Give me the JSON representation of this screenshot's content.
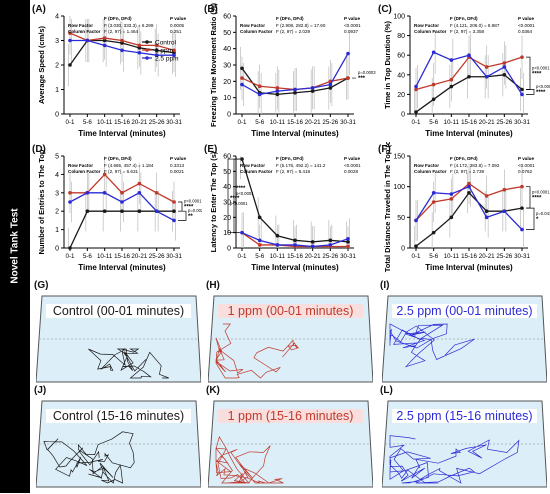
{
  "side_label": "Novel Tank Test",
  "colors": {
    "control": "#1a1a1a",
    "ppm1": "#c0392b",
    "ppm25": "#2b2bd6",
    "tank_fill": "#dceef8",
    "tank_border": "#555555"
  },
  "legend": [
    "Control",
    "1 ppm",
    "2.5 ppm"
  ],
  "chart_data": [
    {
      "panel": "(A)",
      "type": "line",
      "ylabel": "Average Speed (cm/s)",
      "xlabel": "Time Interval (minutes)",
      "categories": [
        "0-1",
        "5-6",
        "10-11",
        "15-16",
        "20-21",
        "25-26",
        "30-31"
      ],
      "ylim": [
        0,
        4
      ],
      "yticks": [
        0,
        1,
        2,
        3,
        4
      ],
      "series": [
        {
          "name": "Control",
          "values": [
            2.0,
            3.0,
            3.0,
            2.9,
            2.7,
            2.6,
            2.5
          ]
        },
        {
          "name": "1 ppm",
          "values": [
            3.3,
            3.0,
            3.1,
            3.0,
            2.8,
            2.8,
            2.6
          ]
        },
        {
          "name": "2.5 ppm",
          "values": [
            3.0,
            3.0,
            2.8,
            2.6,
            2.5,
            2.4,
            2.4
          ]
        }
      ],
      "stats": {
        "h": [
          "",
          "F (DFn, DFd)",
          "P value"
        ],
        "rows": [
          [
            "Row Factor",
            "F (3.030, 333.3) = 6.299",
            "0.0005"
          ],
          [
            "Column Factor",
            "F (2, 97) = 1.464",
            "0.251"
          ]
        ]
      },
      "annotations": []
    },
    {
      "panel": "(B)",
      "type": "line",
      "ylabel": "Freezing Time Movement Ratio (%)",
      "xlabel": "Time Interval (minutes)",
      "categories": [
        "0-1",
        "5-6",
        "10-11",
        "15-16",
        "20-21",
        "25-26",
        "30-31"
      ],
      "ylim": [
        0,
        60
      ],
      "yticks": [
        0,
        10,
        20,
        30,
        40,
        50,
        60
      ],
      "series": [
        {
          "name": "Control",
          "values": [
            28,
            13,
            12,
            13,
            14,
            16,
            22
          ]
        },
        {
          "name": "1 ppm",
          "values": [
            22,
            17,
            16,
            15,
            16,
            20,
            22
          ]
        },
        {
          "name": "2.5 ppm",
          "values": [
            18,
            12,
            14,
            15,
            16,
            18,
            37
          ]
        }
      ],
      "stats": {
        "h": [
          "",
          "F (DFn, DFd)",
          "P value"
        ],
        "rows": [
          [
            "Row Factor",
            "F (2.908, 282.8) = 17.60",
            "<0.0001"
          ],
          [
            "Column Factor",
            "F (2, 97) = 2.029",
            "0.0937"
          ]
        ]
      },
      "annotations": [
        {
          "text": "p=0.0003",
          "stars": "***"
        }
      ]
    },
    {
      "panel": "(C)",
      "type": "line",
      "ylabel": "Time in Top Duration (%)",
      "xlabel": "Time Interval (minutes)",
      "categories": [
        "0-1",
        "5-6",
        "10-11",
        "15-16",
        "20-21",
        "25-26",
        "30-31"
      ],
      "ylim": [
        0,
        100
      ],
      "yticks": [
        0,
        20,
        40,
        60,
        80,
        100
      ],
      "series": [
        {
          "name": "Control",
          "values": [
            2,
            15,
            28,
            38,
            38,
            40,
            25
          ]
        },
        {
          "name": "1 ppm",
          "values": [
            25,
            30,
            35,
            58,
            48,
            52,
            58
          ]
        },
        {
          "name": "2.5 ppm",
          "values": [
            28,
            63,
            55,
            60,
            38,
            48,
            20
          ]
        }
      ],
      "stats": {
        "h": [
          "",
          "F (DFn, DFd)",
          "P value"
        ],
        "rows": [
          [
            "Row Factor",
            "F (4.121, 206.0) = 8.987",
            "<0.0001"
          ],
          [
            "Column Factor",
            "F (2, 97) = 3.358",
            "0.0364"
          ]
        ]
      },
      "annotations": [
        {
          "text": "p<0.0001",
          "stars": "****"
        },
        {
          "text": "p<0.0001",
          "stars": "****"
        }
      ]
    },
    {
      "panel": "(D)",
      "type": "line",
      "ylabel": "Number of Entries to The Top",
      "xlabel": "Time Interval (minutes)",
      "categories": [
        "0-1",
        "5-6",
        "10-11",
        "15-16",
        "20-21",
        "25-26",
        "30-31"
      ],
      "ylim": [
        0,
        5
      ],
      "yticks": [
        0,
        1,
        2,
        3,
        4,
        5
      ],
      "series": [
        {
          "name": "Control",
          "values": [
            0,
            2,
            2,
            2,
            2,
            2,
            2
          ]
        },
        {
          "name": "1 ppm",
          "values": [
            3,
            3,
            4,
            3,
            3.5,
            3,
            2.5
          ]
        },
        {
          "name": "2.5 ppm",
          "values": [
            2.5,
            3,
            3,
            2.5,
            3,
            2,
            1.5
          ]
        }
      ],
      "stats": {
        "h": [
          "",
          "F (DFn, DFd)",
          "P value"
        ],
        "rows": [
          [
            "Row Factor",
            "F (4.665, 457.4) = 1.184",
            "0.3313"
          ],
          [
            "Column Factor",
            "F (2, 97) = 6.631",
            "0.0021"
          ]
        ]
      },
      "annotations": [
        {
          "text": "p<0.0001",
          "stars": "****"
        },
        {
          "text": "p=0.0020",
          "stars": "**"
        }
      ]
    },
    {
      "panel": "(E)",
      "type": "line",
      "ylabel": "Latency to Enter The Top (s)",
      "xlabel": "Time Interval (minutes)",
      "categories": [
        "0-1",
        "5-6",
        "10-11",
        "15-16",
        "20-21",
        "25-26",
        "30-31"
      ],
      "ylim": [
        0,
        60
      ],
      "yticks": [
        0,
        10,
        20,
        30,
        40,
        50,
        60
      ],
      "series": [
        {
          "name": "Control",
          "values": [
            58,
            20,
            8,
            5,
            4,
            5,
            4
          ]
        },
        {
          "name": "1 ppm",
          "values": [
            10,
            2,
            2,
            1,
            1,
            1,
            1
          ]
        },
        {
          "name": "2.5 ppm",
          "values": [
            10,
            5,
            2,
            2,
            1,
            2,
            6
          ]
        }
      ],
      "stats": {
        "h": [
          "",
          "F (DFn, DFd)",
          "P value"
        ],
        "rows": [
          [
            "Row Factor",
            "F (5.176, 492.2) = 141.2",
            "<0.0001"
          ],
          [
            "Column Factor",
            "F (2, 97) = 8.418",
            "0.0028"
          ]
        ]
      },
      "annotations": [
        {
          "text": "p<0.0001",
          "stars": "****"
        },
        {
          "text": "p<0.0001",
          "stars": "****"
        }
      ]
    },
    {
      "panel": "(F)",
      "type": "line",
      "ylabel": "Total Distance Traveled in The Top (cm)",
      "xlabel": "Time Interval (minutes)",
      "categories": [
        "0-1",
        "5-6",
        "10-11",
        "15-16",
        "20-21",
        "25-26",
        "30-31"
      ],
      "ylim": [
        0,
        150
      ],
      "yticks": [
        0,
        50,
        100,
        150
      ],
      "series": [
        {
          "name": "Control",
          "values": [
            3,
            25,
            50,
            90,
            60,
            60,
            65
          ]
        },
        {
          "name": "1 ppm",
          "values": [
            45,
            75,
            80,
            105,
            85,
            95,
            100
          ]
        },
        {
          "name": "2.5 ppm",
          "values": [
            45,
            90,
            88,
            100,
            50,
            60,
            30
          ]
        }
      ],
      "stats": {
        "h": [
          "",
          "F (DFn, DFd)",
          "P value"
        ],
        "rows": [
          [
            "Row Factor",
            "F (4.172, 383.8) = 7.092",
            "<0.0001"
          ],
          [
            "Column Factor",
            "F (2, 97) = 2.739",
            "0.0762"
          ]
        ]
      },
      "annotations": [
        {
          "text": "p<0.0001",
          "stars": "****"
        },
        {
          "text": "p=0.0412",
          "stars": "*"
        }
      ]
    }
  ],
  "tracks": [
    {
      "panel": "(G)",
      "title": "Control (00-01 minutes)",
      "group": "control"
    },
    {
      "panel": "(H)",
      "title": "1 ppm (00-01 minutes)",
      "group": "ppm1"
    },
    {
      "panel": "(I)",
      "title": "2.5 ppm (00-01 minutes)",
      "group": "ppm25"
    },
    {
      "panel": "(J)",
      "title": "Control (15-16 minutes)",
      "group": "control"
    },
    {
      "panel": "(K)",
      "title": "1 ppm (15-16 minutes)",
      "group": "ppm1"
    },
    {
      "panel": "(L)",
      "title": "2.5 ppm (15-16 minutes)",
      "group": "ppm25"
    }
  ]
}
